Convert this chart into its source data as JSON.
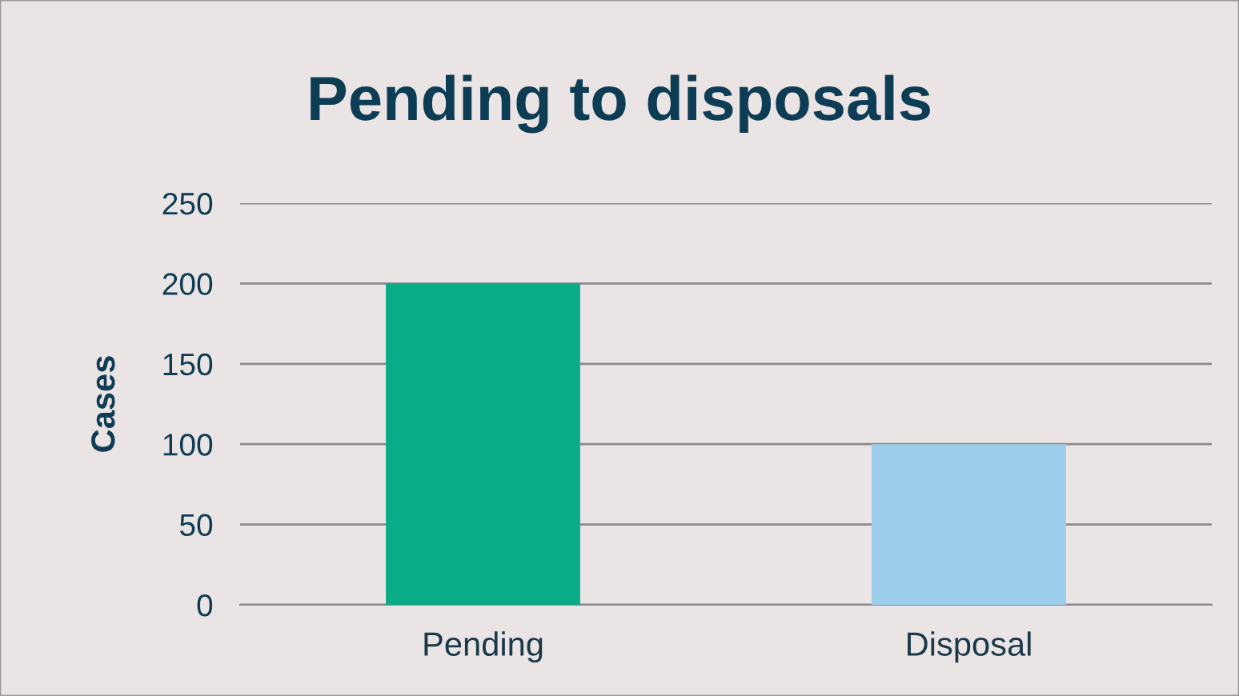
{
  "chart_data": {
    "type": "bar",
    "title": "Pending to disposals",
    "ylabel": "Cases",
    "categories": [
      "Pending",
      "Disposal"
    ],
    "values": [
      200,
      100
    ],
    "colors": [
      "#0aab87",
      "#9ccdeb"
    ],
    "ylim": [
      0,
      250
    ],
    "yticks": [
      0,
      50,
      100,
      150,
      200,
      250
    ],
    "grid": "y",
    "legend": false
  }
}
